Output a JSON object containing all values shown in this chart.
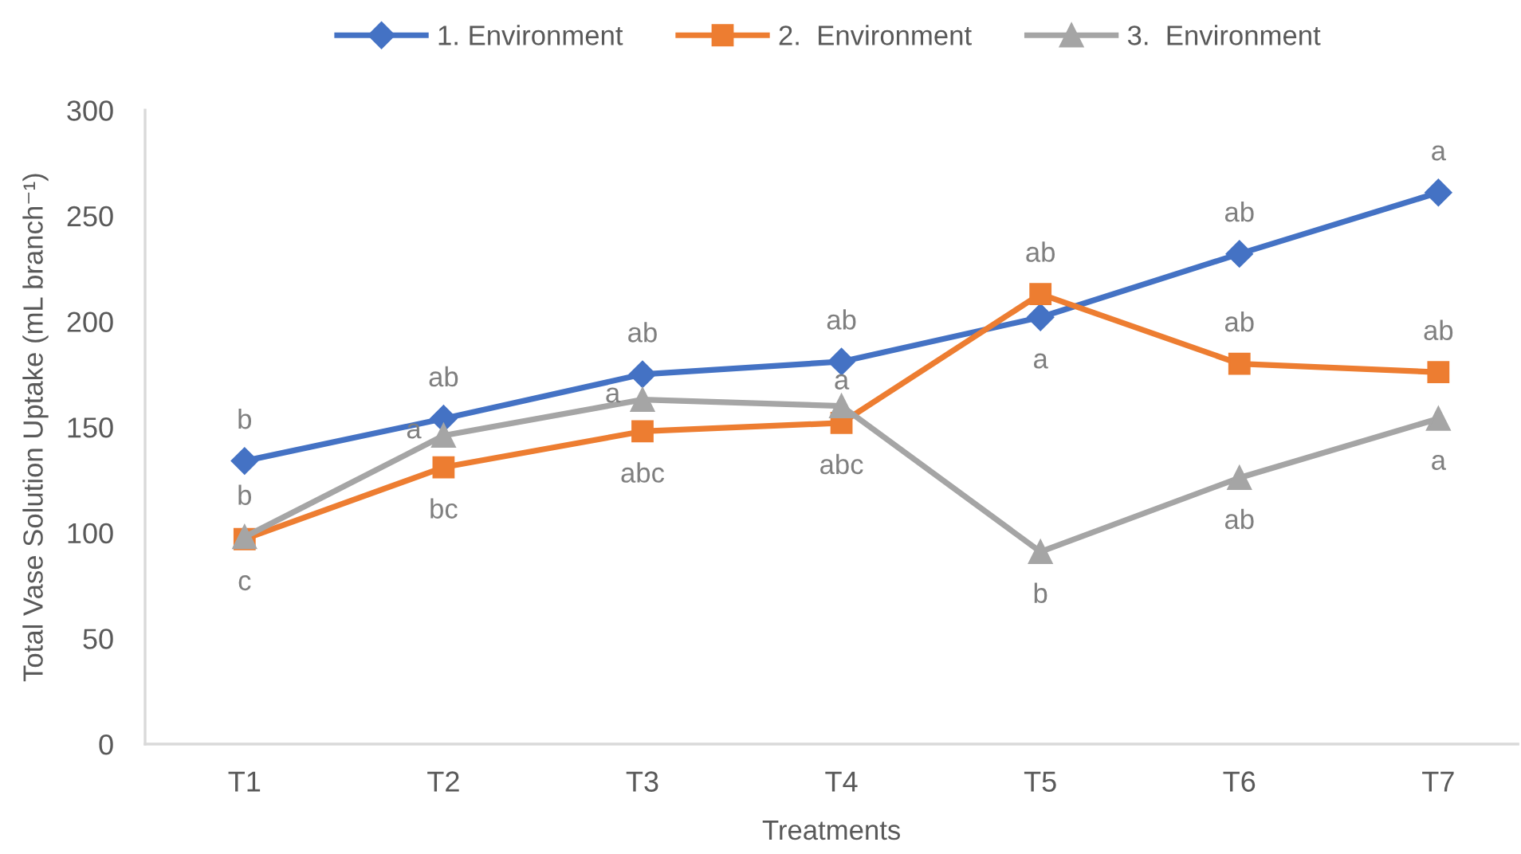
{
  "chart_data": {
    "type": "line",
    "categories": [
      "T1",
      "T2",
      "T3",
      "T4",
      "T5",
      "T6",
      "T7"
    ],
    "xlabel": "Treatments",
    "ylabel": "Total Vase Solution Uptake (mL branch⁻¹)",
    "ylim": [
      0,
      300
    ],
    "yticks": [
      0,
      50,
      100,
      150,
      200,
      250,
      300
    ],
    "grid": false,
    "legend": "top",
    "line_style": "solid",
    "series": [
      {
        "name": "1. Environment",
        "color": "#4472c4",
        "marker": "diamond",
        "values": [
          134,
          154,
          175,
          181,
          202,
          232,
          261
        ],
        "value_labels": [
          "b",
          "ab",
          "ab",
          "ab",
          "a",
          "ab",
          "a"
        ]
      },
      {
        "name": "2.  Environment",
        "color": "#ed7d31",
        "marker": "square",
        "values": [
          97,
          131,
          148,
          152,
          213,
          180,
          176
        ],
        "value_labels": [
          "c",
          "bc",
          "abc",
          "abc",
          "ab",
          "ab",
          "ab"
        ]
      },
      {
        "name": "3.  Environment",
        "color": "#a5a5a5",
        "marker": "triangle",
        "values": [
          98,
          146,
          163,
          160,
          91,
          126,
          154
        ],
        "value_labels": [
          "b",
          "a",
          "a",
          "a",
          "b",
          "ab",
          "a"
        ]
      }
    ]
  }
}
